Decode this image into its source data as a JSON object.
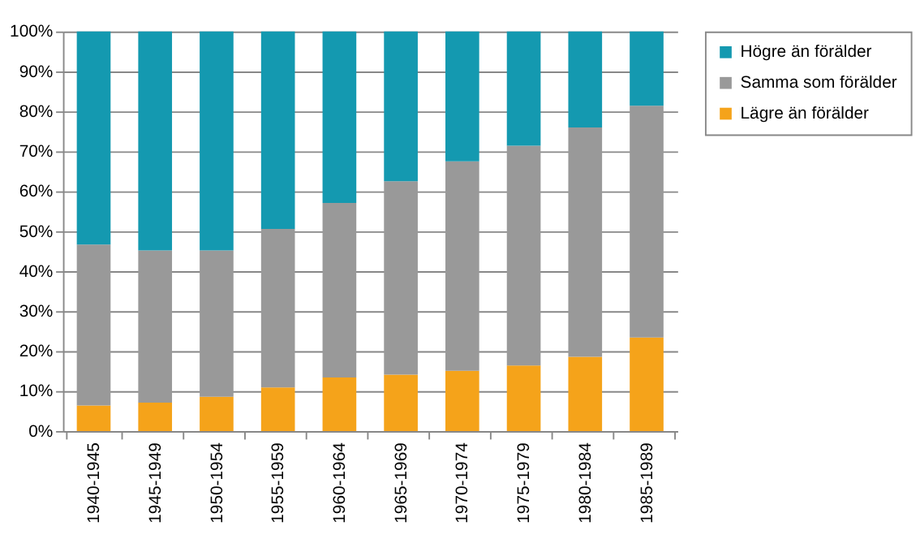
{
  "chart_data": {
    "type": "bar",
    "stacked": true,
    "categories": [
      "1940-1945",
      "1945-1949",
      "1950-1954",
      "1955-1959",
      "1960-1964",
      "1965-1969",
      "1970-1974",
      "1975-1979",
      "1980-1984",
      "1985-1989"
    ],
    "series": [
      {
        "name": "Lägre än förälder",
        "color": "#f5a31a",
        "values": [
          6.4,
          7.1,
          8.6,
          10.9,
          13.4,
          14.1,
          15.1,
          16.4,
          18.6,
          23.4
        ]
      },
      {
        "name": "Samma som förälder",
        "color": "#999999",
        "values": [
          40.3,
          38.1,
          36.6,
          39.7,
          43.7,
          48.4,
          52.4,
          55.0,
          57.4,
          58.0
        ]
      },
      {
        "name": "Högre än förälder",
        "color": "#1499b0",
        "values": [
          53.3,
          54.8,
          54.8,
          49.4,
          42.9,
          37.5,
          32.5,
          28.6,
          24.0,
          18.6
        ]
      }
    ],
    "ylim": [
      0,
      100
    ],
    "yticks": [
      {
        "value": 0,
        "label": "0%"
      },
      {
        "value": 10,
        "label": "10%"
      },
      {
        "value": 20,
        "label": "20%"
      },
      {
        "value": 30,
        "label": "30%"
      },
      {
        "value": 40,
        "label": "40%"
      },
      {
        "value": 50,
        "label": "50%"
      },
      {
        "value": 60,
        "label": "60%"
      },
      {
        "value": 70,
        "label": "70%"
      },
      {
        "value": 80,
        "label": "80%"
      },
      {
        "value": 90,
        "label": "90%"
      },
      {
        "value": 100,
        "label": "100%"
      }
    ],
    "grid": "y",
    "legend": "right"
  }
}
